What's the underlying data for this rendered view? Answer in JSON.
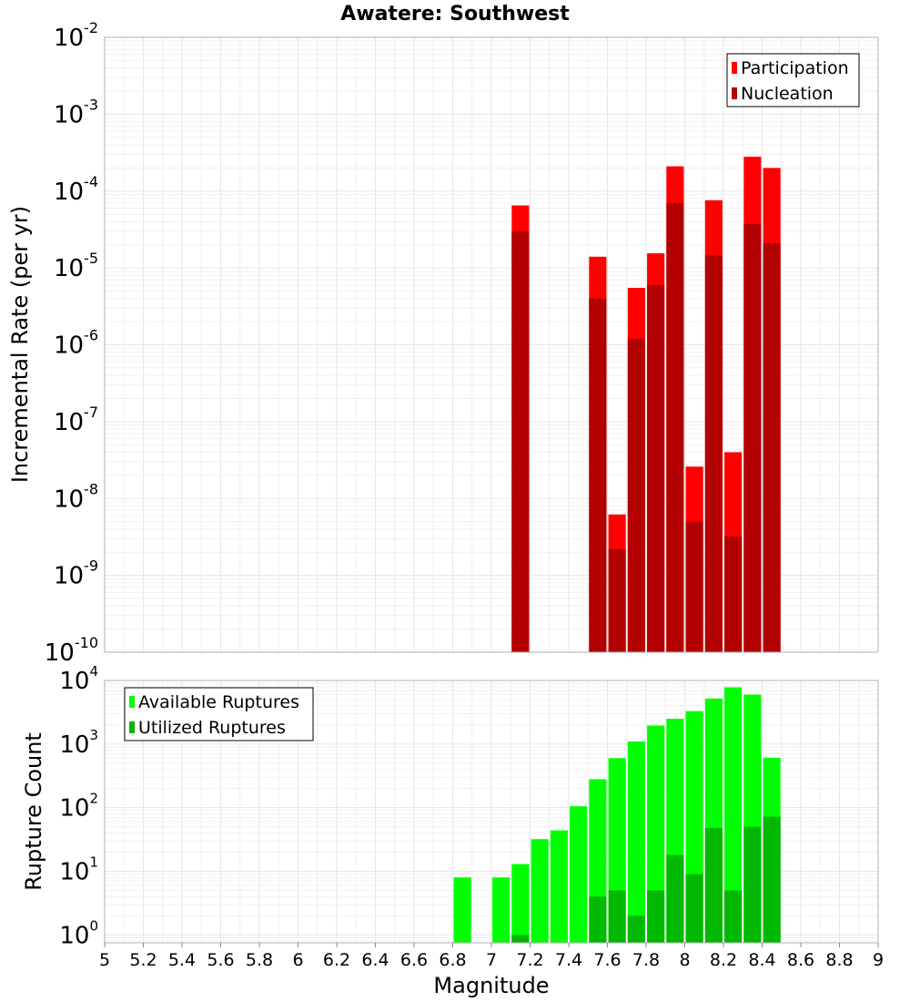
{
  "chart_data": {
    "type": "bar",
    "title": "Awatere: Southwest",
    "xlabel": "Magnitude",
    "xlim": [
      5,
      9
    ],
    "x_ticks": [
      "5",
      "5.2",
      "5.4",
      "5.6",
      "5.8",
      "6",
      "6.2",
      "6.4",
      "6.6",
      "6.8",
      "7",
      "7.2",
      "7.4",
      "7.6",
      "7.8",
      "8",
      "8.2",
      "8.4",
      "8.6",
      "8.8",
      "9"
    ],
    "panels": [
      {
        "ylabel": "Incremental Rate (per yr)",
        "yscale": "log",
        "ylim": [
          1e-10,
          0.01
        ],
        "y_tick_exponents": [
          "-10",
          "-9",
          "-8",
          "-7",
          "-6",
          "-5",
          "-4",
          "-3",
          "-2"
        ],
        "legend_position": "top-right",
        "series": [
          {
            "name": "Participation",
            "color": "#ff0000",
            "x": [
              7.15,
              7.55,
              7.65,
              7.75,
              7.85,
              7.95,
              8.05,
              8.15,
              8.25,
              8.35,
              8.45
            ],
            "values": [
              6.5e-05,
              1.4e-05,
              6.2e-09,
              5.5e-06,
              1.55e-05,
              0.00021,
              2.6e-08,
              7.6e-05,
              4e-08,
              0.00028,
              0.0002
            ]
          },
          {
            "name": "Nucleation",
            "color": "#b30000",
            "x": [
              7.15,
              7.55,
              7.65,
              7.75,
              7.85,
              7.95,
              8.05,
              8.15,
              8.25,
              8.35,
              8.45
            ],
            "values": [
              3e-05,
              4e-06,
              2.2e-09,
              1.2e-06,
              6e-06,
              7e-05,
              5e-09,
              1.45e-05,
              3.2e-09,
              3.7e-05,
              2.1e-05
            ]
          }
        ]
      },
      {
        "ylabel": "Rupture Count",
        "yscale": "log",
        "ylim": [
          0.75,
          10000.0
        ],
        "y_tick_exponents": [
          "0",
          "1",
          "2",
          "3",
          "4"
        ],
        "legend_position": "top-left",
        "series": [
          {
            "name": "Available Ruptures",
            "color": "#00ff00",
            "x": [
              6.85,
              7.05,
              7.15,
              7.25,
              7.35,
              7.45,
              7.55,
              7.65,
              7.75,
              7.85,
              7.95,
              8.05,
              8.15,
              8.25,
              8.35,
              8.45
            ],
            "values": [
              8,
              8,
              13,
              32,
              44,
              105,
              280,
              600,
              1100,
              1950,
              2500,
              3300,
              5200,
              7800,
              6000,
              610
            ]
          },
          {
            "name": "Utilized Ruptures",
            "color": "#00b800",
            "x": [
              7.15,
              7.55,
              7.65,
              7.75,
              7.85,
              7.95,
              8.05,
              8.15,
              8.25,
              8.35,
              8.45
            ],
            "values": [
              1,
              4,
              5,
              2,
              5,
              18,
              9,
              48,
              5,
              50,
              72
            ]
          }
        ]
      }
    ]
  }
}
